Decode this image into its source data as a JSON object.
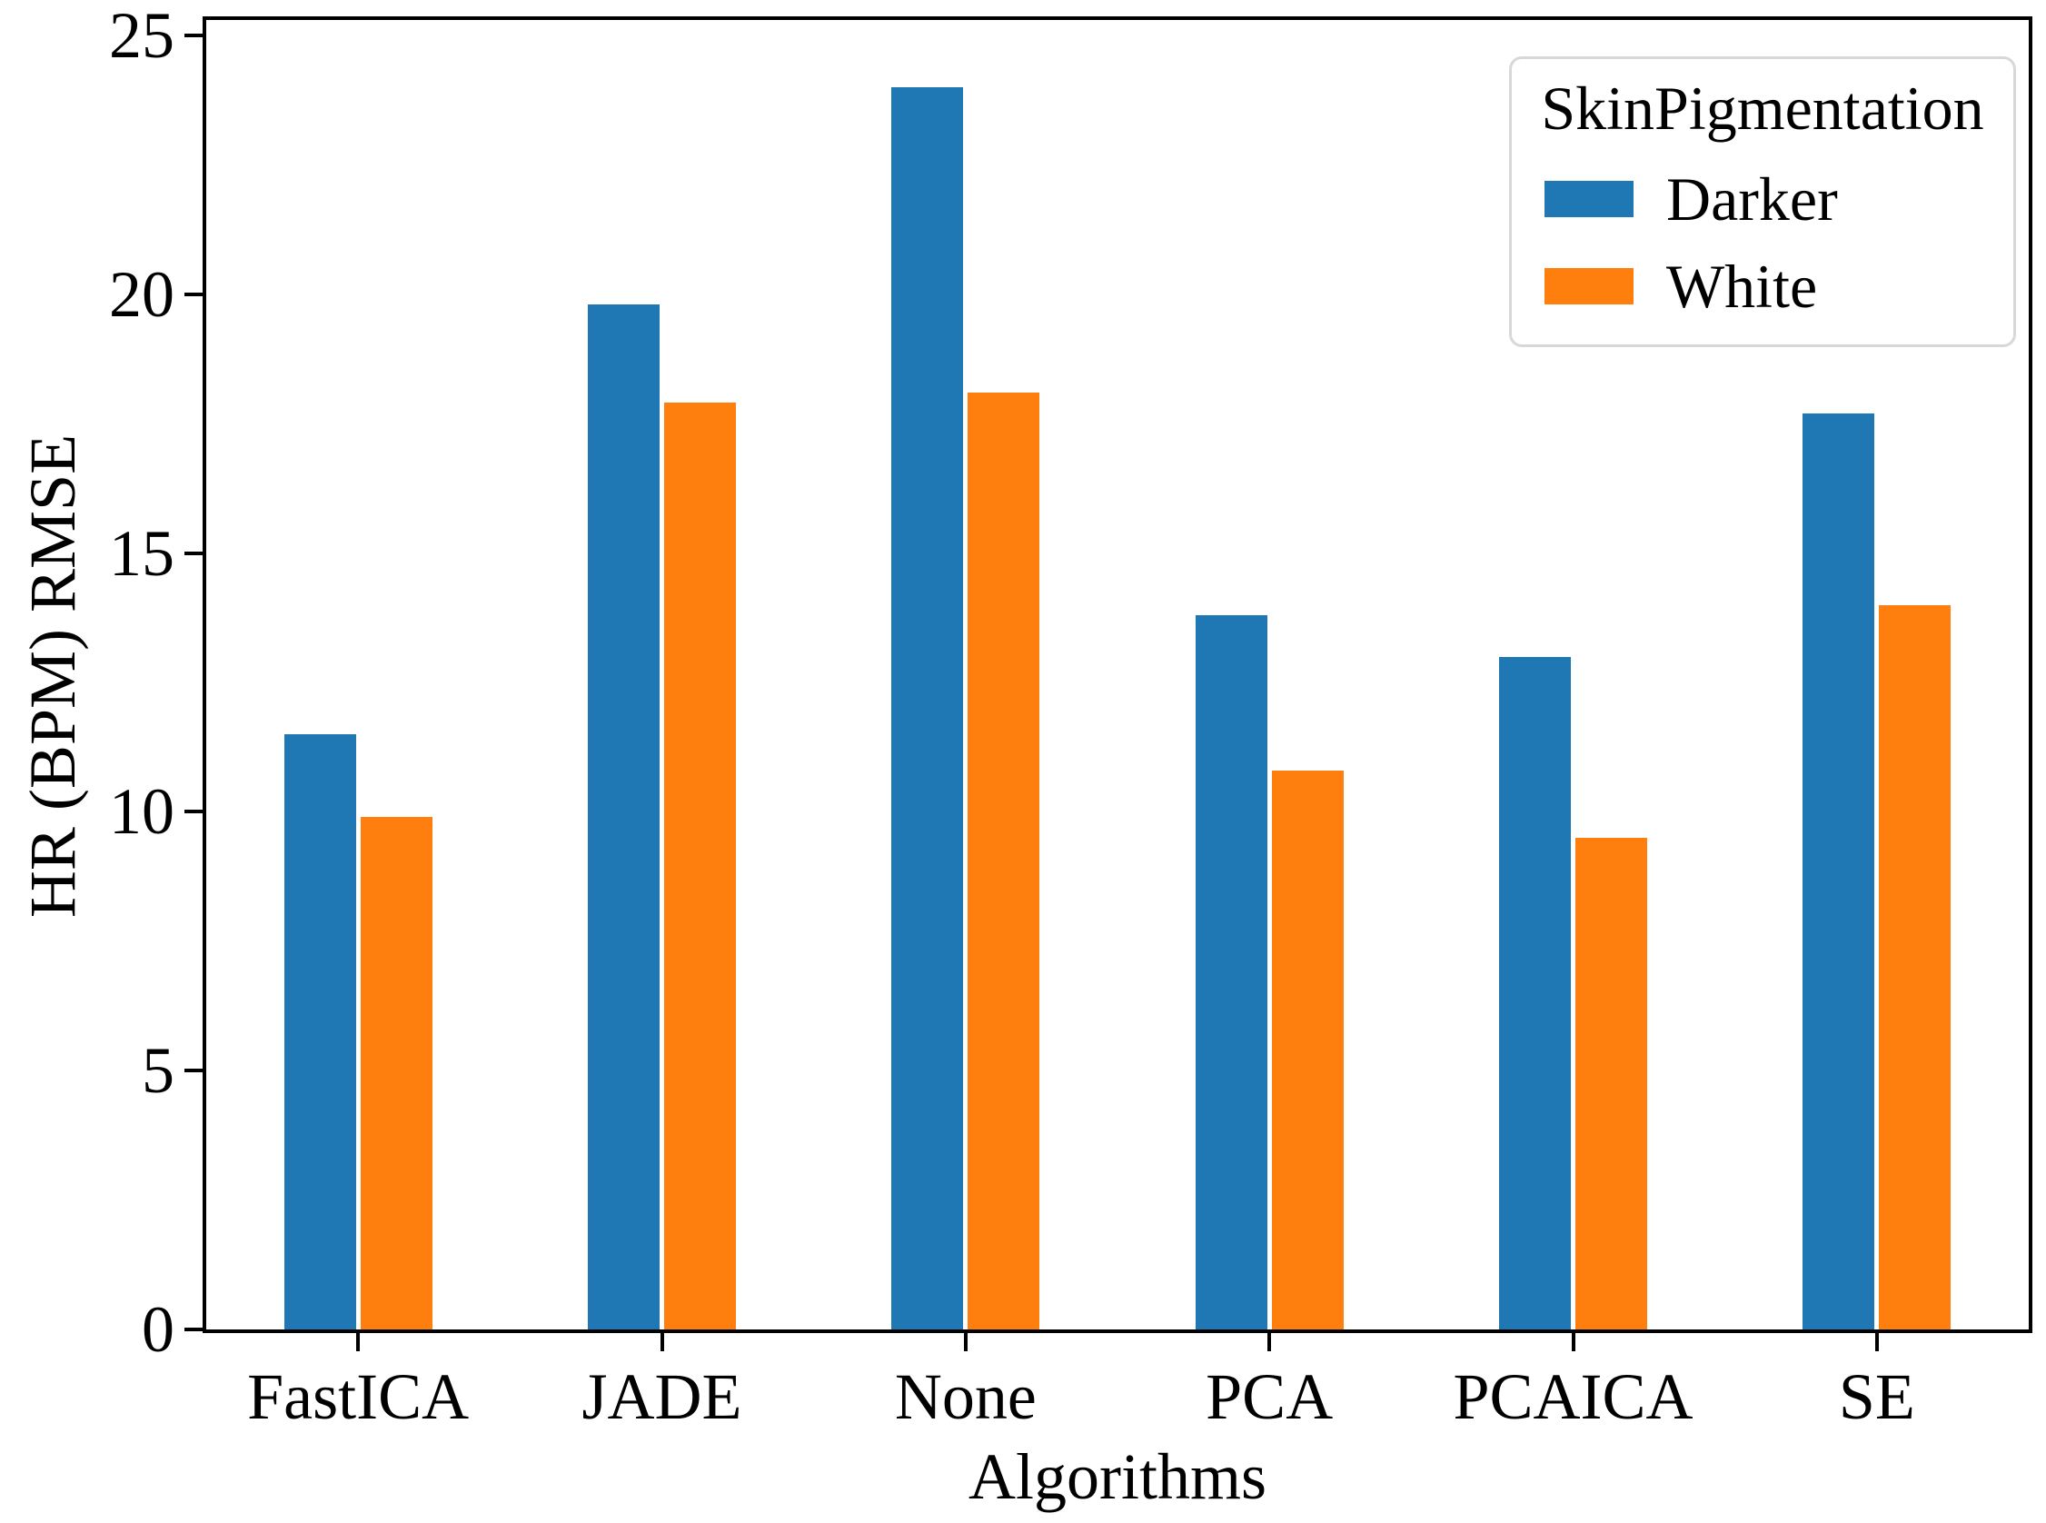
{
  "figure": {
    "background_color": "#ffffff",
    "axis_color": "#000000"
  },
  "chart_data": {
    "type": "bar",
    "title": "",
    "xlabel": "Algorithms",
    "ylabel": "HR (BPM) RMSE",
    "categories": [
      "FastICA",
      "JADE",
      "None",
      "PCA",
      "PCAICA",
      "SE"
    ],
    "series": [
      {
        "name": "Darker",
        "color": "#1f77b4",
        "values": [
          11.5,
          19.8,
          24.0,
          13.8,
          13.0,
          17.7
        ]
      },
      {
        "name": "White",
        "color": "#ff7f0e",
        "values": [
          9.9,
          17.9,
          18.1,
          10.8,
          9.5,
          14.0
        ]
      }
    ],
    "ylim": [
      0,
      25.3
    ],
    "yticks": [
      0,
      5,
      10,
      15,
      20,
      25
    ],
    "grid": false,
    "legend_title": "SkinPigmentation",
    "legend_position": "upper right"
  }
}
